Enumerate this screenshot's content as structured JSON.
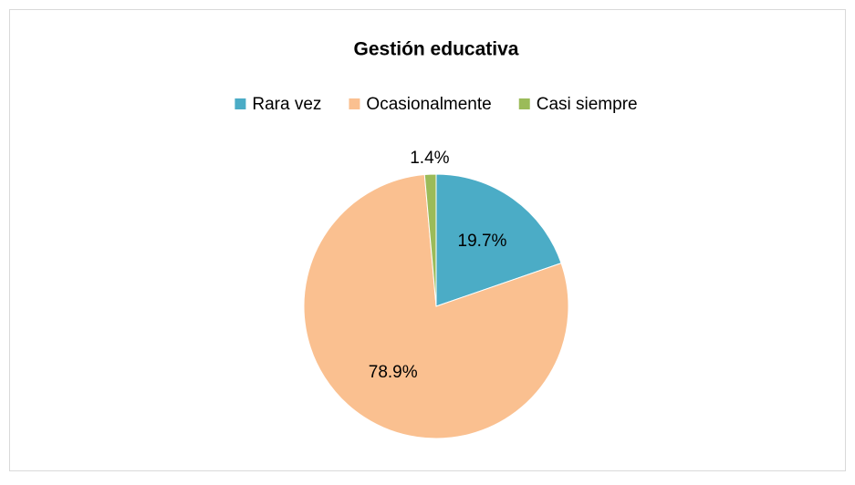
{
  "chart_data": {
    "type": "pie",
    "title": "Gestión educativa",
    "categories": [
      "Rara vez",
      "Ocasionalmente",
      "Casi siempre"
    ],
    "values": [
      19.7,
      78.9,
      1.4
    ],
    "value_labels": [
      "19.7%",
      "78.9%",
      "1.4%"
    ],
    "colors": [
      "#4bacc6",
      "#fac090",
      "#9bbb59"
    ],
    "legend": "top"
  }
}
